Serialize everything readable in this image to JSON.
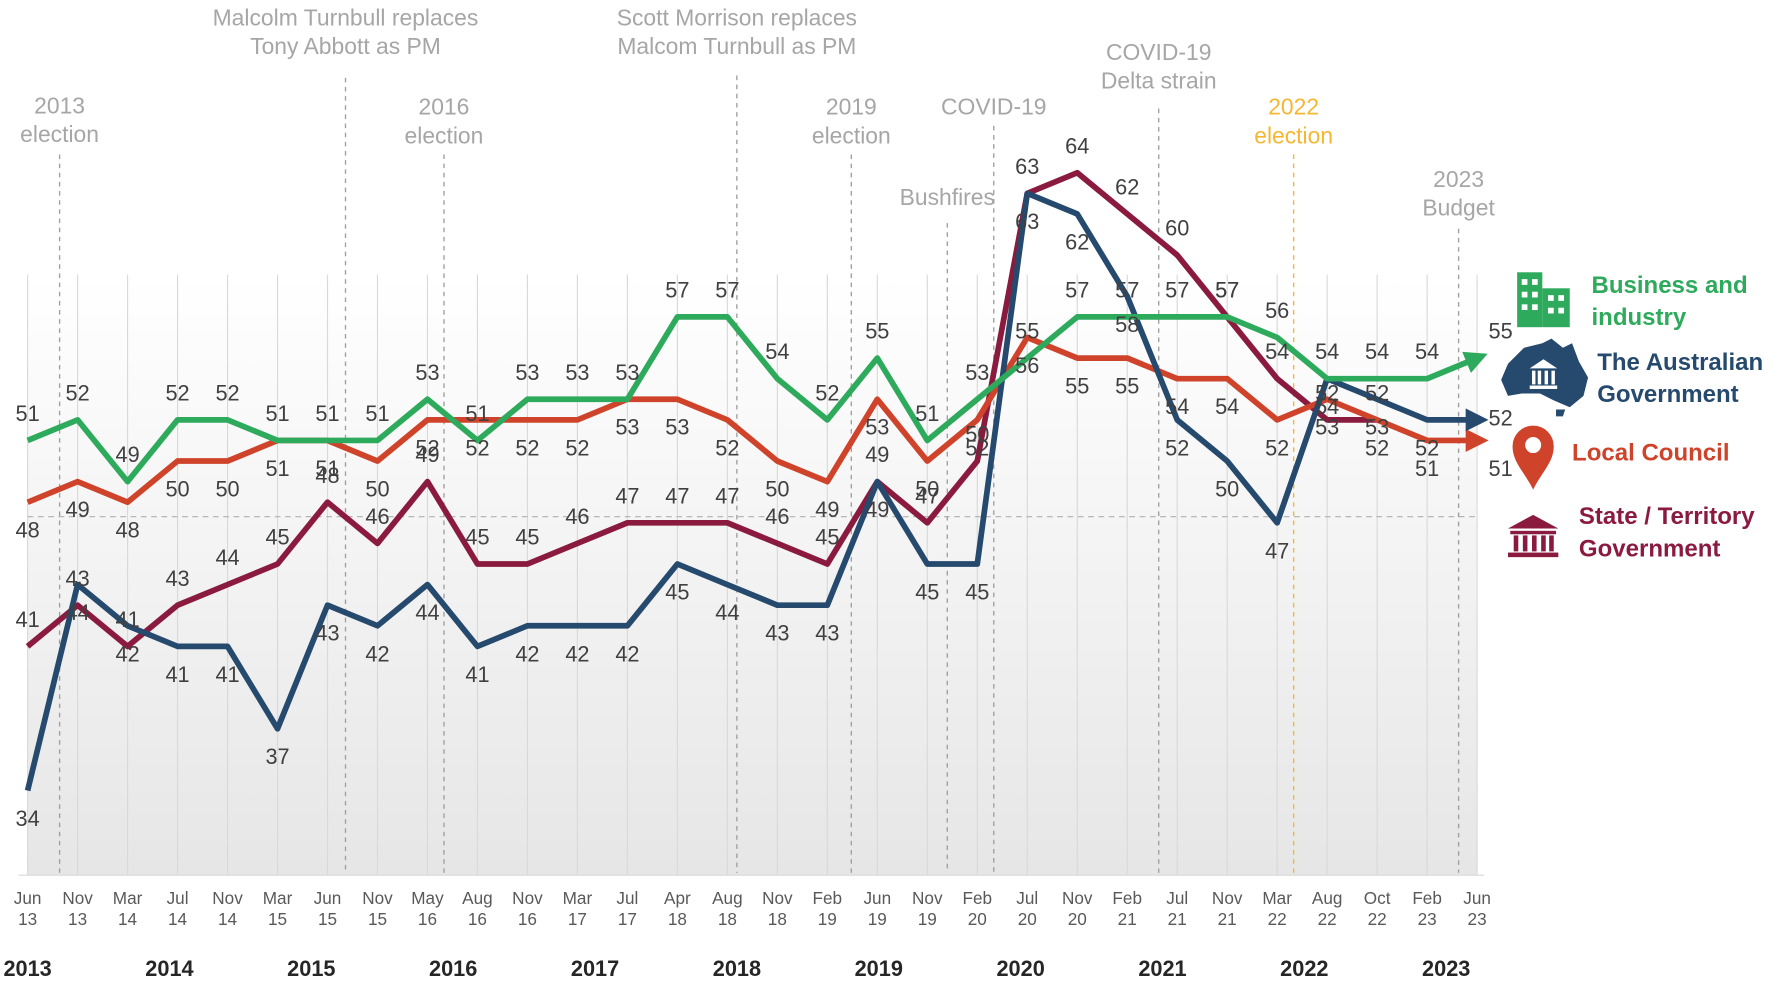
{
  "chart_data": {
    "type": "line",
    "categories": [
      "Jun 13",
      "Nov 13",
      "Mar 14",
      "Jul 14",
      "Nov 14",
      "Mar 15",
      "Jun 15",
      "Nov 15",
      "May 16",
      "Aug 16",
      "Nov 16",
      "Mar 17",
      "Jul 17",
      "Apr 18",
      "Aug 18",
      "Nov 18",
      "Feb 19",
      "Jun 19",
      "Nov 19",
      "Feb 20",
      "Jul 20",
      "Nov 20",
      "Feb 21",
      "Jul 21",
      "Nov 21",
      "Mar 22",
      "Aug 22",
      "Oct 22",
      "Feb 23",
      "Jun 23"
    ],
    "series": [
      {
        "name": "Business and industry",
        "color": "#2eaa5c",
        "values": [
          51,
          52,
          49,
          52,
          52,
          51,
          51,
          51,
          53,
          51,
          53,
          53,
          53,
          57,
          57,
          54,
          52,
          55,
          51,
          53,
          55,
          57,
          57,
          57,
          57,
          56,
          54,
          54,
          54,
          55
        ]
      },
      {
        "name": "The Australian Government",
        "color": "#264a6e",
        "values": [
          34,
          44,
          42,
          41,
          41,
          37,
          43,
          42,
          44,
          41,
          42,
          42,
          42,
          45,
          44,
          43,
          43,
          49,
          45,
          45,
          63,
          62,
          58,
          52,
          50,
          47,
          54,
          53,
          52,
          52
        ]
      },
      {
        "name": "Local Council",
        "color": "#d0432b",
        "values": [
          48,
          49,
          48,
          50,
          50,
          51,
          51,
          50,
          52,
          52,
          52,
          52,
          53,
          53,
          52,
          50,
          49,
          53,
          50,
          52,
          56,
          55,
          55,
          54,
          54,
          52,
          53,
          52,
          51,
          51
        ]
      },
      {
        "name": "State / Territory Government",
        "color": "#8b1a3f",
        "values": [
          41,
          43,
          41,
          43,
          44,
          45,
          48,
          46,
          49,
          45,
          45,
          46,
          47,
          47,
          47,
          46,
          45,
          49,
          47,
          50,
          63,
          64,
          62,
          60,
          57,
          54,
          52,
          52,
          null,
          null
        ]
      }
    ],
    "ylim": [
      30,
      66
    ],
    "reference_line": 47.3,
    "grid": true,
    "events": [
      {
        "label": [
          "2013",
          "election"
        ],
        "color": "#a6a6a6"
      },
      {
        "label": [
          "Malcolm Turnbull replaces",
          "Tony Abbott as PM"
        ],
        "color": "#a6a6a6"
      },
      {
        "label": [
          "2016",
          "election"
        ],
        "color": "#a6a6a6"
      },
      {
        "label": [
          "Scott Morrison replaces",
          "Malcom Turnbull as PM"
        ],
        "color": "#a6a6a6"
      },
      {
        "label": [
          "2019",
          "election"
        ],
        "color": "#a6a6a6"
      },
      {
        "label": [
          "Bushfires"
        ],
        "color": "#a6a6a6"
      },
      {
        "label": [
          "COVID-19"
        ],
        "color": "#a6a6a6"
      },
      {
        "label": [
          "COVID-19",
          "Delta strain"
        ],
        "color": "#a6a6a6"
      },
      {
        "label": [
          "2022",
          "election"
        ],
        "color": "#f5b731"
      },
      {
        "label": [
          "2023",
          "Budget"
        ],
        "color": "#a6a6a6"
      }
    ],
    "years": [
      "2013",
      "2014",
      "2015",
      "2016",
      "2017",
      "2018",
      "2019",
      "2020",
      "2021",
      "2022",
      "2023"
    ]
  }
}
